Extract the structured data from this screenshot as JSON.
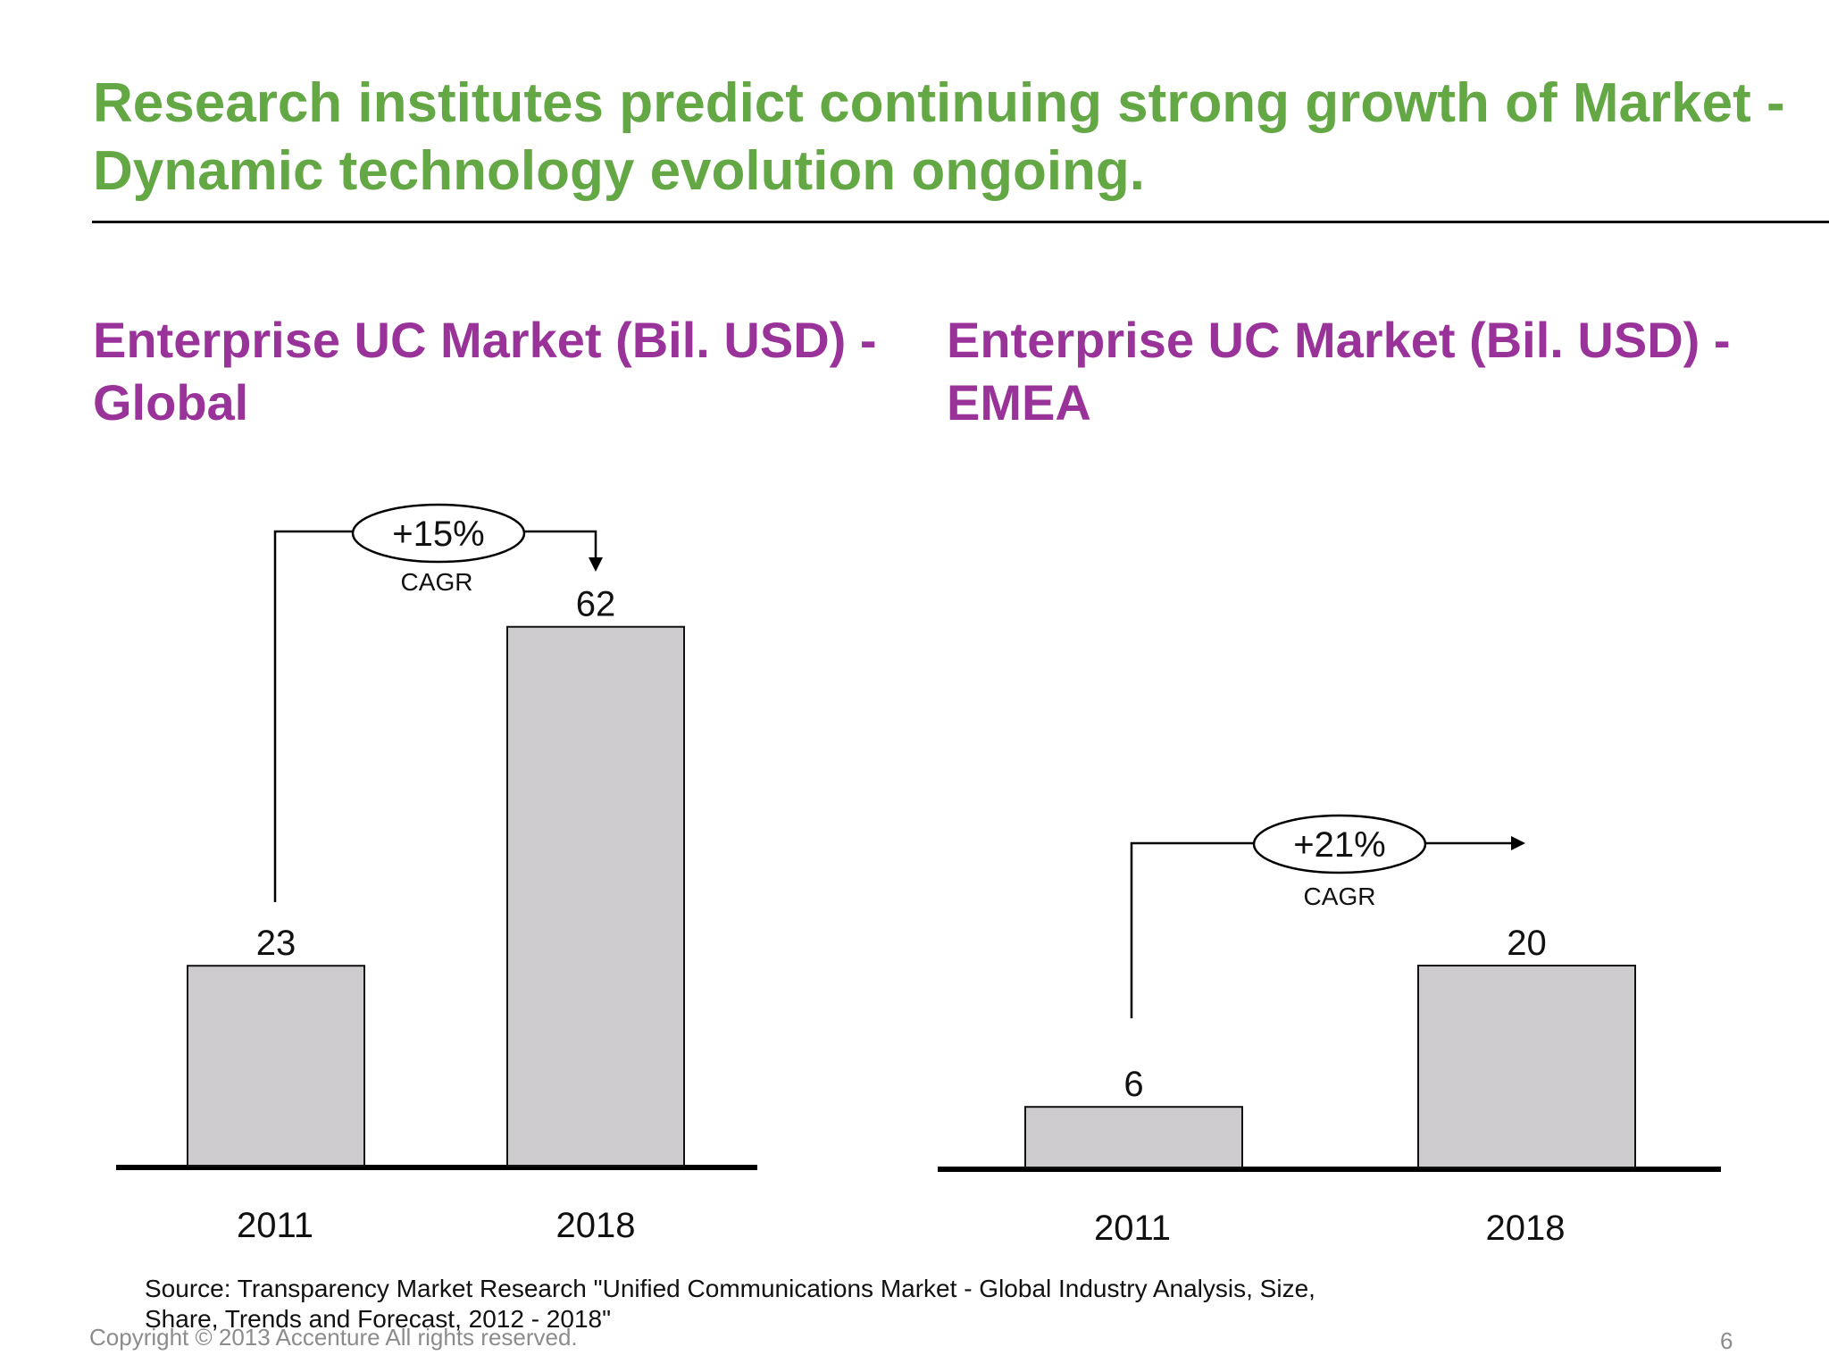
{
  "slide": {
    "title": "Research institutes predict continuing strong growth of Market - Dynamic technology evolution ongoing.",
    "source": "Source: Transparency Market Research \"Unified Communications Market - Global Industry Analysis, Size, Share, Trends and Forecast, 2012 - 2018\"",
    "copyright": "Copyright © 2013 Accenture All rights reserved.",
    "page_number": "6"
  },
  "chart_data": [
    {
      "type": "bar",
      "title": "Enterprise UC Market (Bil. USD) - Global",
      "categories": [
        "2011",
        "2018"
      ],
      "values": [
        23,
        62
      ],
      "value_labels": [
        "23",
        "62"
      ],
      "growth_label": "+15%",
      "growth_caption": "CAGR",
      "bar_color": "#cdcbce"
    },
    {
      "type": "bar",
      "title": "Enterprise UC Market (Bil. USD) - EMEA",
      "categories": [
        "2011",
        "2018"
      ],
      "values": [
        6,
        20
      ],
      "value_labels": [
        "6",
        "20"
      ],
      "growth_label": "+21%",
      "growth_caption": "CAGR",
      "bar_color": "#cdcbce"
    }
  ],
  "colors": {
    "title": "#64a845",
    "chart_title": "#993399",
    "bar": "#cdcbce"
  }
}
